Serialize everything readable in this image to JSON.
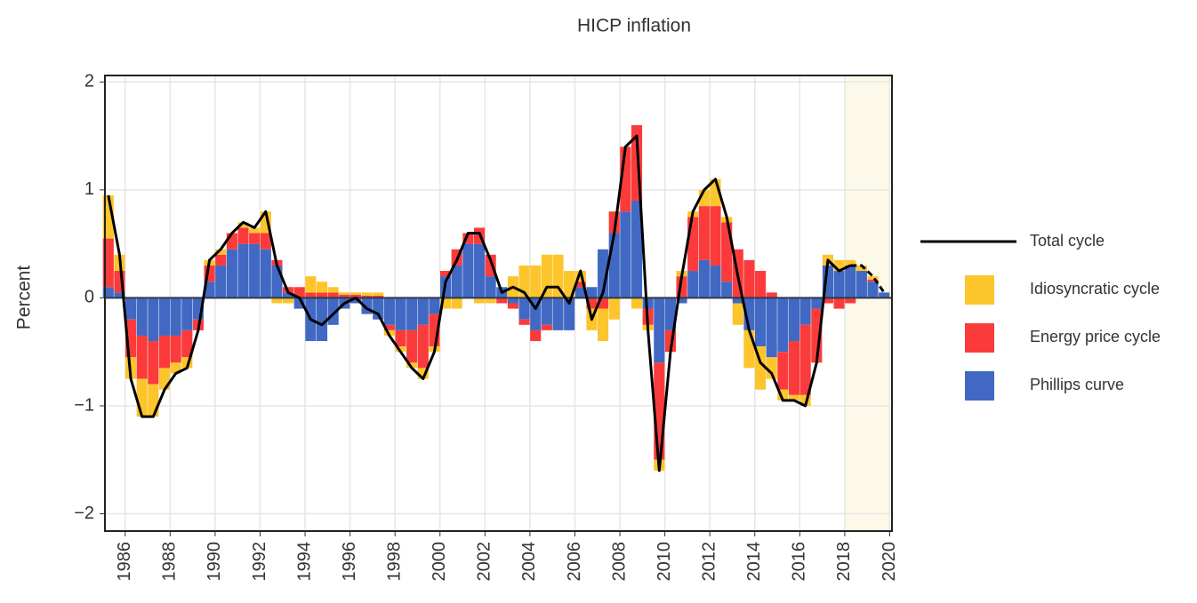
{
  "chart_data": {
    "type": "bar",
    "stacked": true,
    "title": "HICP inflation",
    "y_label": "Percent",
    "x": [
      1985.25,
      1985.75,
      1986.25,
      1986.75,
      1987.25,
      1987.75,
      1988.25,
      1988.75,
      1989.25,
      1989.75,
      1990.25,
      1990.75,
      1991.25,
      1991.75,
      1992.25,
      1992.75,
      1993.25,
      1993.75,
      1994.25,
      1994.75,
      1995.25,
      1995.75,
      1996.25,
      1996.75,
      1997.25,
      1997.75,
      1998.25,
      1998.75,
      1999.25,
      1999.75,
      2000.25,
      2000.75,
      2001.25,
      2001.75,
      2002.25,
      2002.75,
      2003.25,
      2003.75,
      2004.25,
      2004.75,
      2005.25,
      2005.75,
      2006.25,
      2006.75,
      2007.25,
      2007.75,
      2008.25,
      2008.75,
      2009.25,
      2009.75,
      2010.25,
      2010.75,
      2011.25,
      2011.75,
      2012.25,
      2012.75,
      2013.25,
      2013.75,
      2014.25,
      2014.75,
      2015.25,
      2015.75,
      2016.25,
      2016.75,
      2017.25,
      2017.75,
      2018.25,
      2018.75,
      2019.25,
      2019.75
    ],
    "series": [
      {
        "name": "Idiosyncratic cycle",
        "color": "#fdc52c",
        "values": [
          0.4,
          0.15,
          -0.2,
          -0.35,
          -0.3,
          -0.2,
          -0.1,
          -0.1,
          0,
          0.05,
          0.05,
          0,
          0.05,
          0.05,
          0.2,
          -0.05,
          -0.05,
          0,
          0.15,
          0.1,
          0.05,
          0.02,
          0.02,
          0.03,
          0.03,
          -0.05,
          -0.05,
          -0.05,
          -0.1,
          -0.05,
          -0.1,
          -0.1,
          0,
          -0.05,
          -0.05,
          0,
          0.2,
          0.3,
          0.3,
          0.4,
          0.4,
          0.25,
          0.1,
          -0.2,
          -0.3,
          -0.2,
          0,
          -0.1,
          -0.05,
          -0.1,
          0,
          0.05,
          0.05,
          0.15,
          0.25,
          0.05,
          -0.2,
          -0.35,
          -0.4,
          -0.2,
          -0.1,
          -0.05,
          -0.1,
          0,
          0.1,
          0.1,
          0.05,
          0.05,
          0.03,
          0
        ]
      },
      {
        "name": "Energy price cycle",
        "color": "#fb3b3b",
        "values": [
          0.45,
          0.2,
          -0.35,
          -0.4,
          -0.4,
          -0.3,
          -0.25,
          -0.25,
          -0.1,
          0.15,
          0.1,
          0.15,
          0.15,
          0.1,
          0.15,
          0.05,
          0.05,
          0.1,
          0.05,
          0.05,
          0.05,
          0.03,
          0.03,
          0.02,
          0.02,
          -0.05,
          -0.15,
          -0.3,
          -0.4,
          -0.3,
          0.05,
          0.15,
          0.1,
          0.15,
          0.2,
          -0.05,
          -0.05,
          -0.05,
          -0.1,
          -0.05,
          0,
          0,
          0.05,
          -0.1,
          -0.1,
          0.2,
          0.6,
          0.7,
          -0.15,
          -0.9,
          -0.2,
          0.2,
          0.5,
          0.5,
          0.55,
          0.55,
          0.45,
          0.35,
          0.25,
          0.05,
          -0.35,
          -0.5,
          -0.65,
          -0.5,
          -0.05,
          -0.1,
          -0.05,
          0,
          0.02,
          0
        ]
      },
      {
        "name": "Phillips curve",
        "color": "#4169c4",
        "values": [
          0.1,
          0.05,
          -0.2,
          -0.35,
          -0.4,
          -0.35,
          -0.35,
          -0.3,
          -0.2,
          0.15,
          0.3,
          0.45,
          0.5,
          0.5,
          0.45,
          0.3,
          0.05,
          -0.1,
          -0.4,
          -0.4,
          -0.25,
          -0.1,
          -0.05,
          -0.15,
          -0.2,
          -0.25,
          -0.3,
          -0.3,
          -0.25,
          -0.15,
          0.2,
          0.3,
          0.5,
          0.5,
          0.2,
          0.1,
          -0.05,
          -0.2,
          -0.3,
          -0.25,
          -0.3,
          -0.3,
          0.1,
          0.1,
          0.45,
          0.6,
          0.8,
          0.9,
          -0.1,
          -0.6,
          -0.3,
          -0.05,
          0.25,
          0.35,
          0.3,
          0.15,
          -0.05,
          -0.3,
          -0.45,
          -0.55,
          -0.5,
          -0.4,
          -0.25,
          -0.1,
          0.3,
          0.25,
          0.3,
          0.25,
          0.15,
          0.05
        ]
      }
    ],
    "line": {
      "name": "Total cycle",
      "color": "#000000",
      "values": [
        0.95,
        0.4,
        -0.75,
        -1.1,
        -1.1,
        -0.85,
        -0.7,
        -0.65,
        -0.3,
        0.35,
        0.45,
        0.6,
        0.7,
        0.65,
        0.8,
        0.3,
        0.05,
        0,
        -0.2,
        -0.25,
        -0.15,
        -0.05,
        0,
        -0.1,
        -0.15,
        -0.35,
        -0.5,
        -0.65,
        -0.75,
        -0.5,
        0.15,
        0.35,
        0.6,
        0.6,
        0.35,
        0.05,
        0.1,
        0.05,
        -0.1,
        0.1,
        0.1,
        -0.05,
        0.25,
        -0.2,
        0.05,
        0.6,
        1.4,
        1.5,
        -0.3,
        -1.6,
        -0.5,
        0.2,
        0.8,
        1.0,
        1.1,
        0.75,
        0.2,
        -0.3,
        -0.6,
        -0.7,
        -0.95,
        -0.95,
        -1.0,
        -0.6,
        0.35,
        0.25,
        0.3,
        0.3,
        0.2,
        0.05
      ]
    },
    "highlight_span": [
      2018,
      2020.1
    ],
    "xlim": [
      1985.1,
      2020.1
    ],
    "xticks": [
      1986,
      1988,
      1990,
      1992,
      1994,
      1996,
      1998,
      2000,
      2002,
      2004,
      2006,
      2008,
      2010,
      2012,
      2014,
      2016,
      2018,
      2020
    ],
    "ylim": [
      -2.16,
      2.06
    ],
    "yticks": [
      {
        "value": -2,
        "label": "−2"
      },
      {
        "value": -1,
        "label": "−1"
      },
      0,
      1,
      2
    ],
    "grid": true
  }
}
